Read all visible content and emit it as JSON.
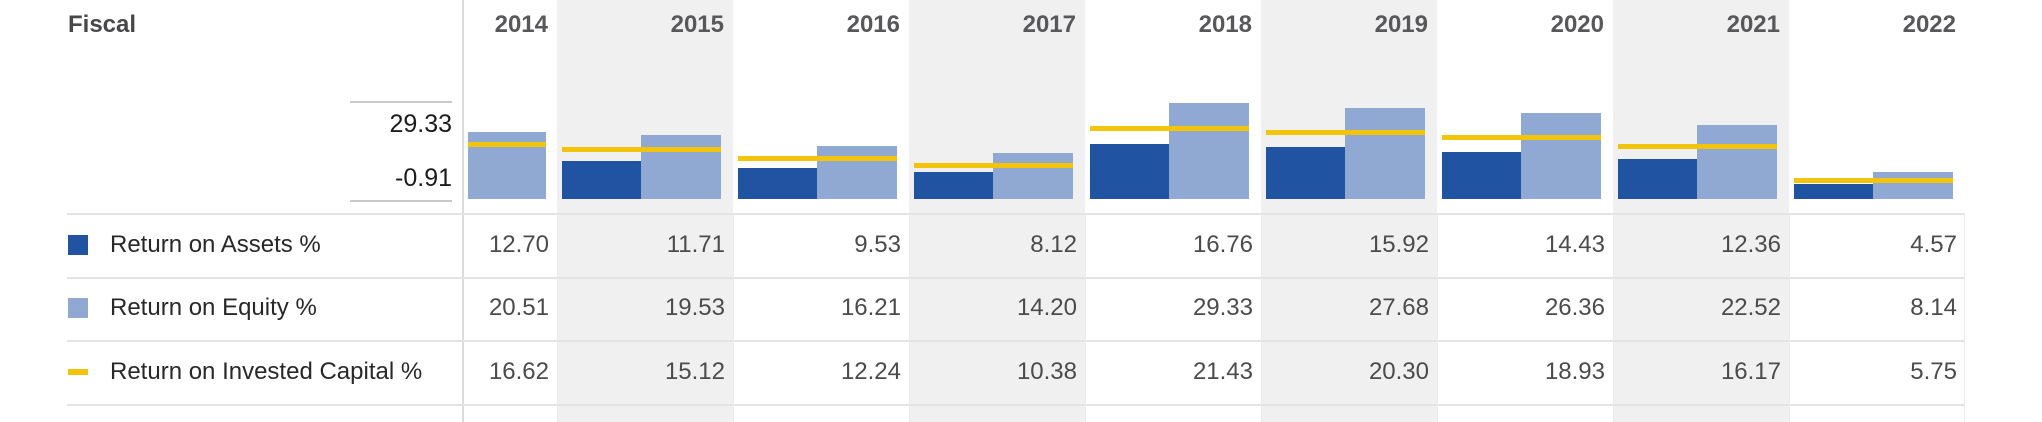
{
  "header": {
    "fiscal_label": "Fiscal",
    "years": [
      "2014",
      "2015",
      "2016",
      "2017",
      "2018",
      "2019",
      "2020",
      "2021",
      "2022"
    ]
  },
  "axis": {
    "max_label": "29.33",
    "min_label": "-0.91",
    "max_value": 29.33,
    "min_value": -0.91
  },
  "chart_data": {
    "type": "bar",
    "title": "Fiscal profitability by year",
    "categories": [
      "2014",
      "2015",
      "2016",
      "2017",
      "2018",
      "2019",
      "2020",
      "2021",
      "2022"
    ],
    "series": [
      {
        "name": "Return on Assets %",
        "render": "bar",
        "color": "#2054A2",
        "values": [
          12.7,
          11.71,
          9.53,
          8.12,
          16.76,
          15.92,
          14.43,
          12.36,
          4.57
        ]
      },
      {
        "name": "Return on Equity %",
        "render": "bar",
        "color": "#8FA9D3",
        "values": [
          20.51,
          19.53,
          16.21,
          14.2,
          29.33,
          27.68,
          26.36,
          22.52,
          8.14
        ]
      },
      {
        "name": "Return on Invested Capital %",
        "render": "line",
        "color": "#F2C40A",
        "values": [
          16.62,
          15.12,
          12.24,
          10.38,
          21.43,
          20.3,
          18.93,
          16.17,
          5.75
        ]
      }
    ],
    "ylim": [
      -0.91,
      29.33
    ],
    "ylabel": "",
    "xlabel": "",
    "grid": false,
    "legend_position": "left-table",
    "striped_columns": [
      "2015",
      "2017",
      "2019",
      "2021"
    ],
    "first_column_partial": true
  },
  "rows": [
    {
      "label": "Return on Assets %",
      "values": [
        "12.70",
        "11.71",
        "9.53",
        "8.12",
        "16.76",
        "15.92",
        "14.43",
        "12.36",
        "4.57"
      ]
    },
    {
      "label": "Return on Equity %",
      "values": [
        "20.51",
        "19.53",
        "16.21",
        "14.20",
        "29.33",
        "27.68",
        "26.36",
        "22.52",
        "8.14"
      ]
    },
    {
      "label": "Return on Invested Capital %",
      "values": [
        "16.62",
        "15.12",
        "12.24",
        "10.38",
        "21.43",
        "20.30",
        "18.93",
        "16.17",
        "5.75"
      ]
    }
  ],
  "colors": {
    "roa_bar": "#2054A2",
    "roe_bar": "#8FA9D3",
    "roic_line": "#F2C40A",
    "column_stripe": "#F0F0F1",
    "row_border": "#E4E4E4",
    "axis_rule": "#C9C9C9",
    "divider": "#DBDBDB"
  }
}
